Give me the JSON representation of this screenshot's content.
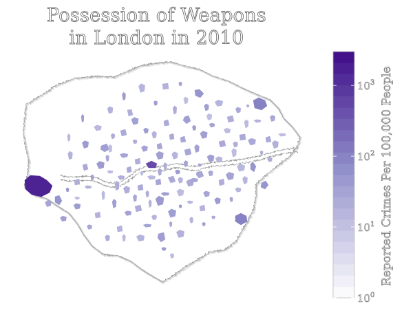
{
  "title_lines": [
    "Possession of Weapons",
    "in London in 2010"
  ],
  "colorbar": {
    "label": "Reported Crimes Per 100,000 People",
    "scale": "log",
    "range": [
      1,
      3000
    ],
    "ticks": [
      {
        "value": 1,
        "base": "10",
        "exp": "0"
      },
      {
        "value": 10,
        "base": "10",
        "exp": "1"
      },
      {
        "value": 100,
        "base": "10",
        "exp": "2"
      },
      {
        "value": 1000,
        "base": "10",
        "exp": "3"
      }
    ],
    "color_low": "#ffffff",
    "color_high": "#3f0c88"
  },
  "colors": {
    "outline": "#8c8c8c",
    "title_stroke": "#6e6e6e",
    "background": "#ffffff"
  }
}
